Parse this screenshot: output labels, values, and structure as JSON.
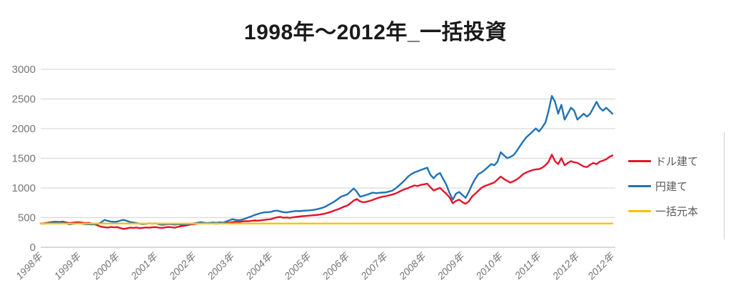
{
  "title": "1998年～2012年_一括投資",
  "colors": {
    "background": "#ffffff",
    "gridline": "#d9d9d9",
    "zero_axis": "#c4c4c4",
    "tick_label": "#767676",
    "legend_text": "#595959",
    "title_text": "#1a1a1a"
  },
  "chart_data": {
    "type": "line",
    "title": "1998年～2012年_一括投資",
    "xlabel": "",
    "ylabel": "",
    "ylim": [
      0,
      3000
    ],
    "y_ticks": [
      0,
      500,
      1000,
      1500,
      2000,
      2500,
      3000
    ],
    "x_tick_labels": [
      "1998年",
      "1999年",
      "2000年",
      "2001年",
      "2002年",
      "2003年",
      "2004年",
      "2005年",
      "2006年",
      "2007年",
      "2008年",
      "2009年",
      "2010年",
      "2011年",
      "2012年",
      "2012年"
    ],
    "x_resolution": "monthly",
    "points_per_year": 12,
    "grid": "horizontal",
    "legend_position": "right",
    "series": [
      {
        "name": "ドル建て",
        "color": "#e8112a",
        "values": [
          400,
          405,
          412,
          420,
          428,
          430,
          425,
          432,
          418,
          408,
          415,
          420,
          422,
          415,
          408,
          412,
          400,
          385,
          365,
          345,
          338,
          330,
          342,
          336,
          340,
          322,
          310,
          318,
          330,
          326,
          332,
          322,
          328,
          334,
          330,
          336,
          340,
          330,
          326,
          335,
          342,
          336,
          330,
          345,
          355,
          362,
          375,
          385,
          392,
          398,
          402,
          405,
          400,
          408,
          403,
          398,
          405,
          400,
          410,
          415,
          422,
          430,
          426,
          435,
          440,
          438,
          445,
          452,
          448,
          455,
          462,
          468,
          472,
          490,
          505,
          512,
          498,
          502,
          495,
          505,
          512,
          518,
          524,
          528,
          532,
          538,
          542,
          548,
          558,
          568,
          582,
          600,
          622,
          638,
          662,
          685,
          705,
          742,
          788,
          812,
          775,
          758,
          768,
          782,
          800,
          820,
          838,
          852,
          862,
          875,
          888,
          905,
          930,
          958,
          978,
          998,
          1022,
          1042,
          1032,
          1052,
          1062,
          1072,
          1012,
          958,
          978,
          1002,
          948,
          902,
          838,
          742,
          782,
          802,
          762,
          732,
          772,
          852,
          902,
          952,
          1002,
          1032,
          1052,
          1072,
          1092,
          1142,
          1192,
          1152,
          1122,
          1092,
          1112,
          1142,
          1182,
          1232,
          1262,
          1282,
          1302,
          1312,
          1318,
          1342,
          1382,
          1442,
          1562,
          1452,
          1402,
          1502,
          1382,
          1422,
          1452,
          1432,
          1422,
          1392,
          1362,
          1352,
          1392,
          1422,
          1402,
          1442,
          1462,
          1482,
          1522,
          1548
        ]
      },
      {
        "name": "円建て",
        "color": "#1f72b5",
        "values": [
          400,
          398,
          405,
          410,
          418,
          422,
          415,
          420,
          402,
          388,
          395,
          400,
          402,
          396,
          392,
          388,
          385,
          390,
          395,
          420,
          462,
          445,
          432,
          428,
          432,
          452,
          462,
          445,
          425,
          418,
          408,
          398,
          390,
          395,
          402,
          398,
          402,
          388,
          378,
          385,
          392,
          388,
          382,
          390,
          378,
          385,
          392,
          398,
          402,
          412,
          422,
          415,
          408,
          412,
          418,
          412,
          420,
          415,
          432,
          452,
          472,
          462,
          455,
          465,
          482,
          502,
          522,
          545,
          562,
          578,
          588,
          592,
          595,
          612,
          618,
          605,
          592,
          588,
          598,
          605,
          612,
          608,
          615,
          618,
          622,
          628,
          635,
          648,
          662,
          682,
          712,
          742,
          772,
          812,
          852,
          872,
          892,
          942,
          992,
          932,
          852,
          868,
          882,
          902,
          922,
          912,
          918,
          922,
          925,
          938,
          952,
          988,
          1032,
          1082,
          1132,
          1192,
          1232,
          1262,
          1282,
          1302,
          1322,
          1342,
          1222,
          1162,
          1222,
          1252,
          1152,
          1052,
          912,
          802,
          902,
          932,
          882,
          832,
          932,
          1052,
          1152,
          1232,
          1262,
          1302,
          1352,
          1402,
          1382,
          1442,
          1602,
          1552,
          1502,
          1522,
          1552,
          1622,
          1702,
          1782,
          1852,
          1902,
          1952,
          2002,
          1952,
          2022,
          2102,
          2302,
          2552,
          2452,
          2252,
          2402,
          2152,
          2252,
          2352,
          2302,
          2152,
          2202,
          2252,
          2202,
          2252,
          2352,
          2452,
          2352,
          2302,
          2352,
          2302,
          2252
        ]
      },
      {
        "name": "一括元本",
        "color": "#ffc000",
        "constant": 400
      }
    ]
  }
}
